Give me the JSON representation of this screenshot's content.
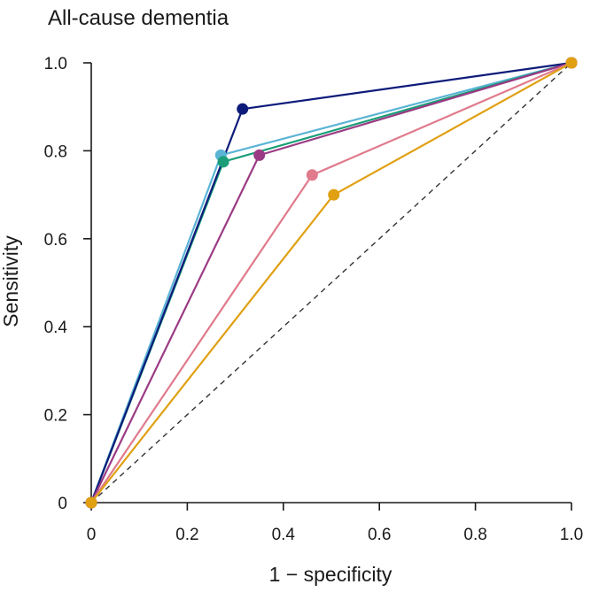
{
  "chart_data": {
    "type": "line",
    "title": "All-cause dementia",
    "xlabel": "1 − specificity",
    "ylabel": "Sensitivity",
    "xlim": [
      0,
      1
    ],
    "ylim": [
      0,
      1
    ],
    "x_ticks": [
      {
        "value": 0,
        "label": "0"
      },
      {
        "value": 0.2,
        "label": "0.2"
      },
      {
        "value": 0.4,
        "label": "0.4"
      },
      {
        "value": 0.6,
        "label": "0.6"
      },
      {
        "value": 0.8,
        "label": "0.8"
      },
      {
        "value": 1.0,
        "label": "1.0"
      }
    ],
    "y_ticks": [
      {
        "value": 0,
        "label": "0"
      },
      {
        "value": 0.2,
        "label": "0.2"
      },
      {
        "value": 0.4,
        "label": "0.4"
      },
      {
        "value": 0.6,
        "label": "0.6"
      },
      {
        "value": 0.8,
        "label": "0.8"
      },
      {
        "value": 1.0,
        "label": "1.0"
      }
    ],
    "grid": false,
    "reference_line": {
      "x": [
        0,
        1
      ],
      "y": [
        0,
        1
      ],
      "style": "dashed",
      "color": "#333333"
    },
    "series": [
      {
        "color": "#5ab4d6",
        "x": [
          0,
          0.27,
          1
        ],
        "y": [
          0,
          0.79,
          1
        ]
      },
      {
        "color": "#1a9e77",
        "x": [
          0,
          0.275,
          1
        ],
        "y": [
          0,
          0.775,
          1
        ]
      },
      {
        "color": "#0d1b7a",
        "x": [
          0,
          0.315,
          1
        ],
        "y": [
          0,
          0.895,
          1
        ]
      },
      {
        "color": "#9b3a84",
        "x": [
          0,
          0.35,
          1
        ],
        "y": [
          0,
          0.79,
          1
        ]
      },
      {
        "color": "#e07a8c",
        "x": [
          0,
          0.46,
          1
        ],
        "y": [
          0,
          0.745,
          1
        ]
      },
      {
        "color": "#e0a012",
        "x": [
          0,
          0.505,
          1
        ],
        "y": [
          0,
          0.7,
          1
        ]
      }
    ]
  }
}
